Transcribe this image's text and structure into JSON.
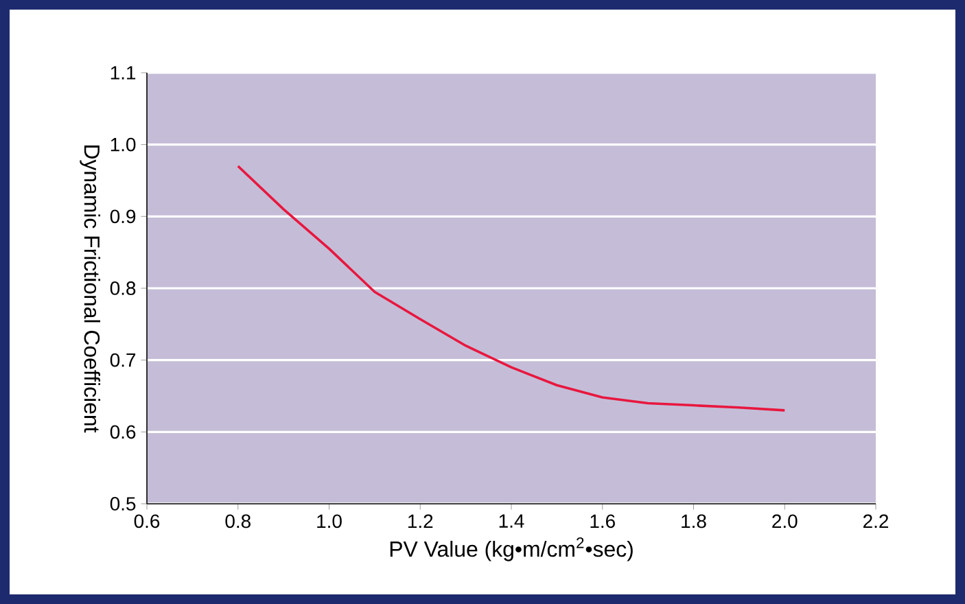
{
  "chart_data": {
    "type": "line",
    "xlabel": "PV Value (kg•m/cm$^{2}$•sec)",
    "ylabel": "Dynamic Frictional Coefficient",
    "series": [
      {
        "color": "#e8173f",
        "x": [
          0.8,
          0.9,
          1.0,
          1.1,
          1.2,
          1.3,
          1.4,
          1.5,
          1.6,
          1.7,
          1.8,
          1.9,
          2.0
        ],
        "values": [
          0.97,
          0.91,
          0.855,
          0.795,
          0.757,
          0.72,
          0.69,
          0.665,
          0.648,
          0.64,
          0.637,
          0.634,
          0.63
        ]
      }
    ],
    "xlim": [
      0.6,
      2.2
    ],
    "xticks": [
      0.6,
      0.8,
      {
        "value": 1,
        "label": "1.0"
      },
      1.2,
      1.4,
      1.6,
      1.8,
      {
        "value": 2,
        "label": "2.0"
      },
      2.2
    ],
    "ylim": [
      0.5,
      1.1
    ],
    "yticks": [
      0.5,
      0.6,
      0.7,
      0.8,
      0.9,
      {
        "value": 1,
        "label": "1.0"
      },
      1.1
    ],
    "grid": "y",
    "marker": "none",
    "line_style": "solid"
  }
}
